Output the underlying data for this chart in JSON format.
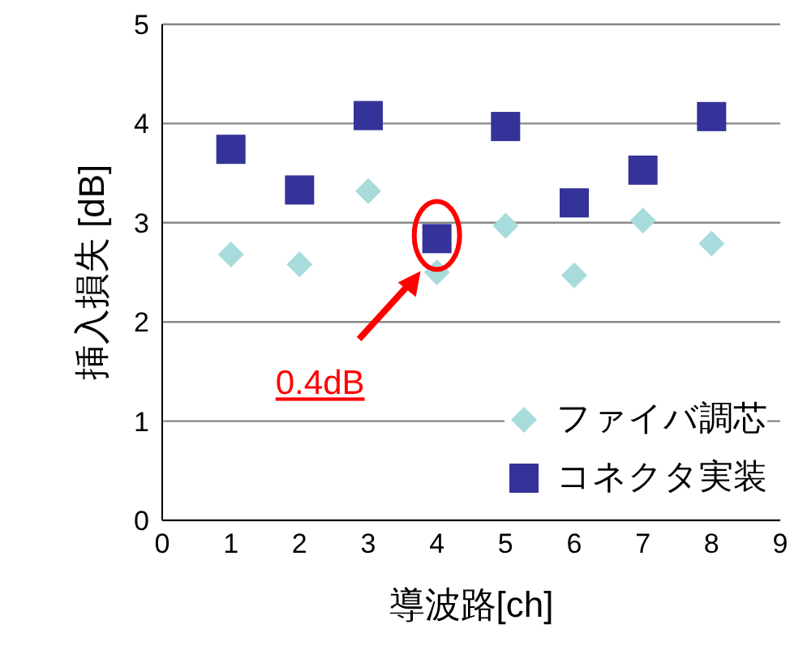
{
  "chart_data": {
    "type": "scatter",
    "xlabel": "導波路[ch]",
    "ylabel": "挿入損失 [dB]",
    "xlim": [
      0,
      9
    ],
    "xticks": [
      0,
      1,
      2,
      3,
      4,
      5,
      6,
      7,
      8,
      9
    ],
    "ylim": [
      0,
      5
    ],
    "yticks": [
      0,
      1,
      2,
      3,
      4,
      5
    ],
    "grid": "y",
    "legend": "bottom right",
    "x": [
      1,
      2,
      3,
      4,
      5,
      6,
      7,
      8
    ],
    "series": [
      {
        "name": "ファイバ調芯",
        "color": "#a8dcdc",
        "marker": "diamond",
        "values": [
          2.68,
          2.58,
          3.32,
          2.5,
          2.97,
          2.47,
          3.02,
          2.79
        ]
      },
      {
        "name": "コネクタ実装",
        "color": "#333399",
        "marker": "square",
        "values": [
          3.74,
          3.33,
          4.08,
          2.84,
          3.97,
          3.2,
          3.53,
          4.07
        ]
      }
    ],
    "annotations": [
      "0.4dB"
    ]
  }
}
